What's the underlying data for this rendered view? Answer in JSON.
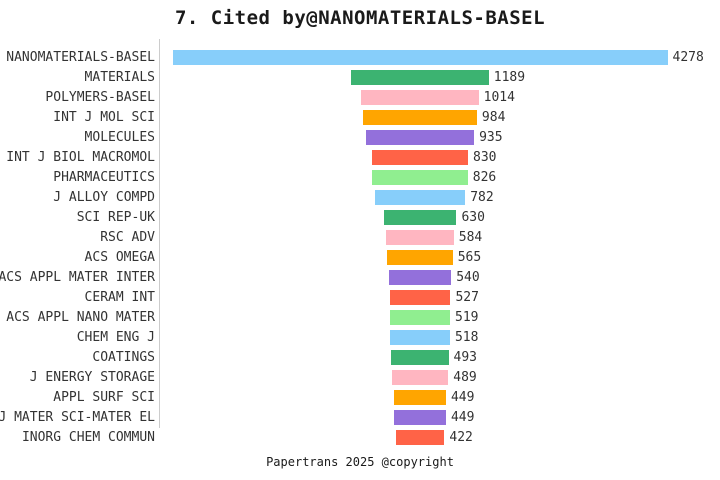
{
  "title": "7. Cited by@NANOMATERIALS-BASEL",
  "footer": "Papertrans 2025 @copyright",
  "chart_data": {
    "type": "bar",
    "orientation": "horizontal",
    "style": "centered-funnel",
    "title": "7. Cited by@NANOMATERIALS-BASEL",
    "xlabel": "",
    "ylabel": "",
    "grid": false,
    "legend": false,
    "value_labels": "right-of-bar",
    "categories": [
      "NANOMATERIALS-BASEL",
      "MATERIALS",
      "POLYMERS-BASEL",
      "INT J MOL SCI",
      "MOLECULES",
      "INT J BIOL MACROMOL",
      "PHARMACEUTICS",
      "J ALLOY COMPD",
      "SCI REP-UK",
      "RSC ADV",
      "ACS OMEGA",
      "ACS APPL MATER INTER",
      "CERAM INT",
      "ACS APPL NANO MATER",
      "CHEM ENG J",
      "COATINGS",
      "J ENERGY STORAGE",
      "APPL SURF SCI",
      "J MATER SCI-MATER EL",
      "INORG CHEM COMMUN"
    ],
    "values": [
      4278,
      1189,
      1014,
      984,
      935,
      830,
      826,
      782,
      630,
      584,
      565,
      540,
      527,
      519,
      518,
      493,
      489,
      449,
      449,
      422
    ],
    "palette": [
      "#87CEFA",
      "#3CB371",
      "#FFB6C1",
      "#FFA500",
      "#9370DB",
      "#FF6347",
      "#90EE90"
    ],
    "axis_line_color": "#cccccc",
    "text_color": "#333333"
  }
}
